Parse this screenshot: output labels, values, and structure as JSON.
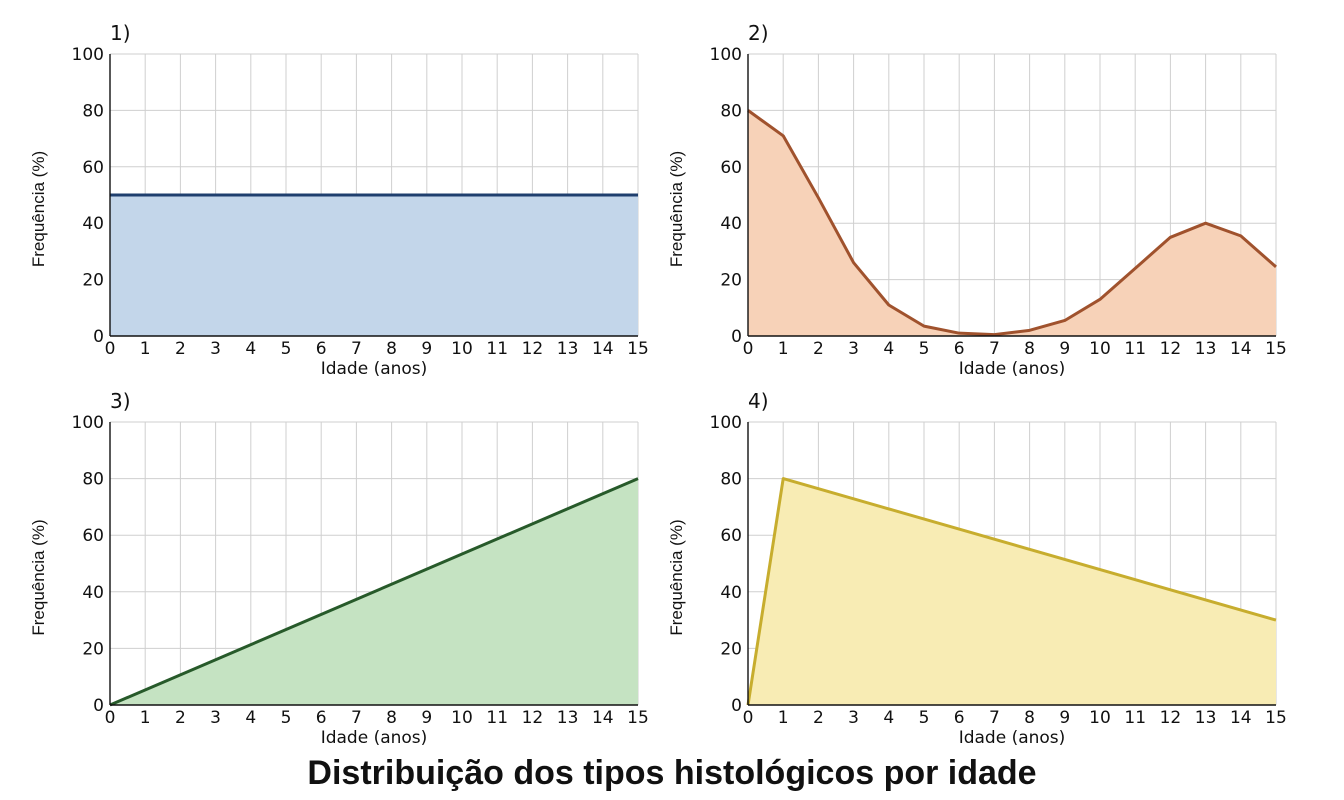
{
  "title": "Distribuição dos tipos histológicos por idade",
  "chart_data": [
    {
      "type": "area",
      "panel_label": "1)",
      "xlabel": "Idade (anos)",
      "ylabel": "Frequência (%)",
      "xlim": [
        0,
        15
      ],
      "ylim": [
        0,
        100
      ],
      "xticks": [
        0,
        1,
        2,
        3,
        4,
        5,
        6,
        7,
        8,
        9,
        10,
        11,
        12,
        13,
        14,
        15
      ],
      "yticks": [
        0,
        20,
        40,
        60,
        80,
        100
      ],
      "grid": true,
      "x": [
        0,
        1,
        2,
        3,
        4,
        5,
        6,
        7,
        8,
        9,
        10,
        11,
        12,
        13,
        14,
        15
      ],
      "values": [
        50,
        50,
        50,
        50,
        50,
        50,
        50,
        50,
        50,
        50,
        50,
        50,
        50,
        50,
        50,
        50
      ],
      "line_color": "#1f3f6e",
      "fill_color": "#c3d6ea"
    },
    {
      "type": "area",
      "panel_label": "2)",
      "xlabel": "Idade (anos)",
      "ylabel": "Frequência (%)",
      "xlim": [
        0,
        15
      ],
      "ylim": [
        0,
        100
      ],
      "xticks": [
        0,
        1,
        2,
        3,
        4,
        5,
        6,
        7,
        8,
        9,
        10,
        11,
        12,
        13,
        14,
        15
      ],
      "yticks": [
        0,
        20,
        40,
        60,
        80,
        100
      ],
      "grid": true,
      "x": [
        0,
        1,
        2,
        3,
        4,
        5,
        6,
        7,
        8,
        9,
        10,
        11,
        12,
        13,
        14,
        15
      ],
      "values": [
        80,
        71,
        49,
        26,
        11,
        3.5,
        1,
        0.5,
        2,
        5.5,
        13,
        24,
        35,
        40,
        35.5,
        24.5
      ],
      "line_color": "#a0522d",
      "fill_color": "#f7d2b8"
    },
    {
      "type": "area",
      "panel_label": "3)",
      "xlabel": "Idade (anos)",
      "ylabel": "Frequência (%)",
      "xlim": [
        0,
        15
      ],
      "ylim": [
        0,
        100
      ],
      "xticks": [
        0,
        1,
        2,
        3,
        4,
        5,
        6,
        7,
        8,
        9,
        10,
        11,
        12,
        13,
        14,
        15
      ],
      "yticks": [
        0,
        20,
        40,
        60,
        80,
        100
      ],
      "grid": true,
      "x": [
        0,
        15
      ],
      "values": [
        0,
        80
      ],
      "line_color": "#275a2a",
      "fill_color": "#c5e3c2"
    },
    {
      "type": "area",
      "panel_label": "4)",
      "xlabel": "Idade (anos)",
      "ylabel": "Frequência (%)",
      "xlim": [
        0,
        15
      ],
      "ylim": [
        0,
        100
      ],
      "xticks": [
        0,
        1,
        2,
        3,
        4,
        5,
        6,
        7,
        8,
        9,
        10,
        11,
        12,
        13,
        14,
        15
      ],
      "yticks": [
        0,
        20,
        40,
        60,
        80,
        100
      ],
      "grid": true,
      "x": [
        0,
        1,
        15
      ],
      "values": [
        0,
        80,
        30
      ],
      "line_color": "#c7ad2e",
      "fill_color": "#f8ecb4"
    }
  ]
}
